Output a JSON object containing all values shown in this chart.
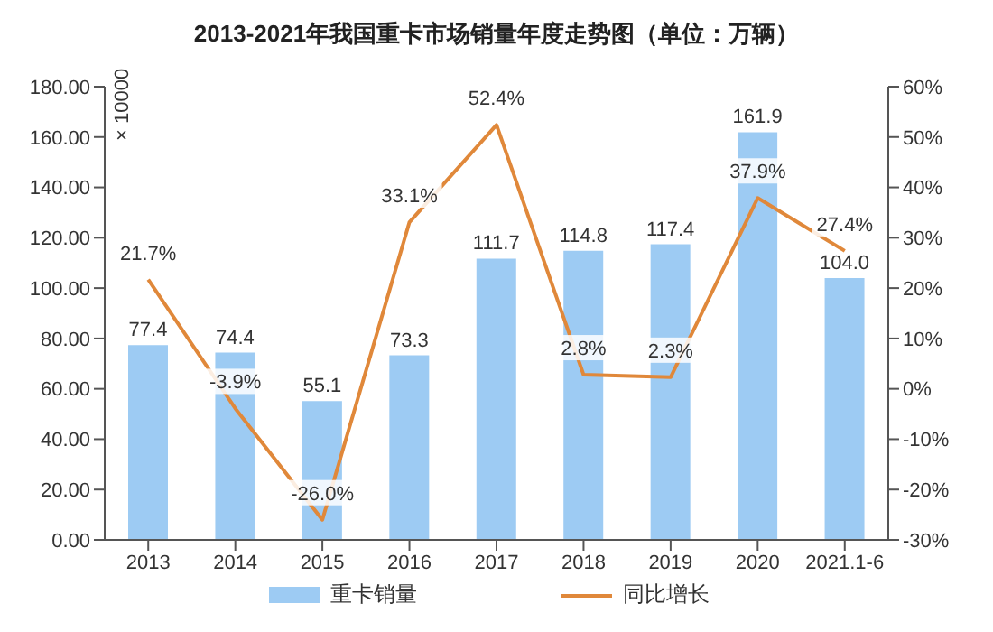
{
  "chart_data": {
    "type": "bar",
    "title": "2013-2021年我国重卡市场销量年度走势图（单位：万辆）",
    "categories": [
      "2013",
      "2014",
      "2015",
      "2016",
      "2017",
      "2018",
      "2019",
      "2020",
      "2021.1-6"
    ],
    "series": [
      {
        "name": "重卡销量",
        "color": "#9dcbf3",
        "values": [
          77.4,
          74.4,
          55.1,
          73.3,
          111.7,
          114.8,
          117.4,
          161.9,
          104.0
        ],
        "value_labels": [
          "77.4",
          "74.4",
          "55.1",
          "73.3",
          "111.7",
          "114.8",
          "117.4",
          "161.9",
          "104.0"
        ]
      },
      {
        "name": "同比增长",
        "type": "line",
        "axis": "y2",
        "color": "#e0883a",
        "values": [
          21.7,
          -3.9,
          -26.0,
          33.1,
          52.4,
          2.8,
          2.3,
          37.9,
          27.4
        ],
        "value_labels": [
          "21.7%",
          "-3.9%",
          "-26.0%",
          "33.1%",
          "52.4%",
          "2.8%",
          "2.3%",
          "37.9%",
          "27.4%"
        ]
      }
    ],
    "ylim": [
      0,
      180
    ],
    "yticks": [
      {
        "value": 0,
        "label": "0.00"
      },
      {
        "value": 20,
        "label": "20.00"
      },
      {
        "value": 40,
        "label": "40.00"
      },
      {
        "value": 60,
        "label": "60.00"
      },
      {
        "value": 80,
        "label": "80.00"
      },
      {
        "value": 100,
        "label": "100.00"
      },
      {
        "value": 120,
        "label": "120.00"
      },
      {
        "value": 140,
        "label": "140.00"
      },
      {
        "value": 160,
        "label": "160.00"
      },
      {
        "value": 180,
        "label": "180.00"
      }
    ],
    "y2lim": [
      -30,
      60
    ],
    "y2ticks": [
      {
        "value": -30,
        "label": "-30%"
      },
      {
        "value": -20,
        "label": "-20%"
      },
      {
        "value": -10,
        "label": "-10%"
      },
      {
        "value": 0,
        "label": "0%"
      },
      {
        "value": 10,
        "label": "10%"
      },
      {
        "value": 20,
        "label": "20%"
      },
      {
        "value": 30,
        "label": "30%"
      },
      {
        "value": 40,
        "label": "40%"
      },
      {
        "value": 50,
        "label": "50%"
      },
      {
        "value": 60,
        "label": "60%"
      }
    ],
    "annotations": [
      "× 10000"
    ],
    "grid": false,
    "legend": "bottom",
    "marker": "none"
  }
}
